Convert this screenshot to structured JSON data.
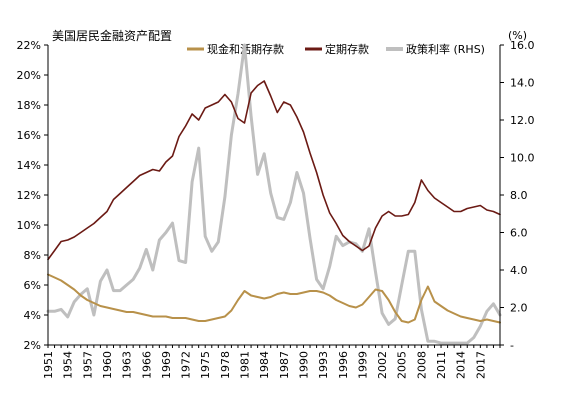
{
  "chart_data": {
    "type": "line",
    "title": "美国居民金融资产配置",
    "right_unit": "(%)",
    "colors": {
      "cash": "#B8914A",
      "time": "#6B1A14",
      "rate": "#BFBFBF",
      "grid": "#E0E0E0",
      "axis": "#000000"
    },
    "x_ticks": [
      "1951",
      "1954",
      "1957",
      "1960",
      "1963",
      "1966",
      "1969",
      "1972",
      "1975",
      "1978",
      "1981",
      "1984",
      "1987",
      "1990",
      "1993",
      "1996",
      "1999",
      "2002",
      "2005",
      "2008",
      "2011",
      "2014",
      "2017"
    ],
    "xlim": [
      1951,
      2020
    ],
    "y_left": {
      "ylim": [
        2,
        22
      ],
      "ticks": [
        2,
        4,
        6,
        8,
        10,
        12,
        14,
        16,
        18,
        20,
        22
      ],
      "tick_labels": [
        "2%",
        "4%",
        "6%",
        "8%",
        "10%",
        "12%",
        "14%",
        "16%",
        "18%",
        "20%",
        "22%"
      ]
    },
    "y_right": {
      "ylim": [
        0,
        16
      ],
      "ticks": [
        0,
        2,
        4,
        6,
        8,
        10,
        12,
        14,
        16
      ],
      "tick_labels": [
        "-",
        "2.0",
        "4.0",
        "6.0",
        "8.0",
        "10.0",
        "12.0",
        "14.0",
        "16.0"
      ]
    },
    "legend_position": "top",
    "series": [
      {
        "key": "cash",
        "name": "现金和活期存款",
        "axis": "left",
        "points": [
          [
            1951,
            6.7
          ],
          [
            1952,
            6.5
          ],
          [
            1953,
            6.3
          ],
          [
            1954,
            6.0
          ],
          [
            1955,
            5.7
          ],
          [
            1956,
            5.3
          ],
          [
            1957,
            5.0
          ],
          [
            1958,
            4.8
          ],
          [
            1959,
            4.6
          ],
          [
            1960,
            4.5
          ],
          [
            1961,
            4.4
          ],
          [
            1962,
            4.3
          ],
          [
            1963,
            4.2
          ],
          [
            1964,
            4.2
          ],
          [
            1965,
            4.1
          ],
          [
            1966,
            4.0
          ],
          [
            1967,
            3.9
          ],
          [
            1968,
            3.9
          ],
          [
            1969,
            3.9
          ],
          [
            1970,
            3.8
          ],
          [
            1971,
            3.8
          ],
          [
            1972,
            3.8
          ],
          [
            1973,
            3.7
          ],
          [
            1974,
            3.6
          ],
          [
            1975,
            3.6
          ],
          [
            1976,
            3.7
          ],
          [
            1977,
            3.8
          ],
          [
            1978,
            3.9
          ],
          [
            1979,
            4.3
          ],
          [
            1980,
            5.0
          ],
          [
            1981,
            5.6
          ],
          [
            1982,
            5.3
          ],
          [
            1983,
            5.2
          ],
          [
            1984,
            5.1
          ],
          [
            1985,
            5.2
          ],
          [
            1986,
            5.4
          ],
          [
            1987,
            5.5
          ],
          [
            1988,
            5.4
          ],
          [
            1989,
            5.4
          ],
          [
            1990,
            5.5
          ],
          [
            1991,
            5.6
          ],
          [
            1992,
            5.6
          ],
          [
            1993,
            5.5
          ],
          [
            1994,
            5.3
          ],
          [
            1995,
            5.0
          ],
          [
            1996,
            4.8
          ],
          [
            1997,
            4.6
          ],
          [
            1998,
            4.5
          ],
          [
            1999,
            4.7
          ],
          [
            2000,
            5.2
          ],
          [
            2001,
            5.7
          ],
          [
            2002,
            5.6
          ],
          [
            2003,
            5.0
          ],
          [
            2004,
            4.2
          ],
          [
            2005,
            3.6
          ],
          [
            2006,
            3.5
          ],
          [
            2007,
            3.7
          ],
          [
            2008,
            5.0
          ],
          [
            2009,
            5.9
          ],
          [
            2010,
            4.9
          ],
          [
            2011,
            4.6
          ],
          [
            2012,
            4.3
          ],
          [
            2013,
            4.1
          ],
          [
            2014,
            3.9
          ],
          [
            2015,
            3.8
          ],
          [
            2016,
            3.7
          ],
          [
            2017,
            3.6
          ],
          [
            2018,
            3.7
          ],
          [
            2019,
            3.6
          ],
          [
            2020,
            3.5
          ]
        ]
      },
      {
        "key": "time",
        "name": "定期存款",
        "axis": "left",
        "points": [
          [
            1951,
            7.7
          ],
          [
            1952,
            8.3
          ],
          [
            1953,
            8.9
          ],
          [
            1954,
            9.0
          ],
          [
            1955,
            9.2
          ],
          [
            1956,
            9.5
          ],
          [
            1957,
            9.8
          ],
          [
            1958,
            10.1
          ],
          [
            1959,
            10.5
          ],
          [
            1960,
            10.9
          ],
          [
            1961,
            11.7
          ],
          [
            1962,
            12.1
          ],
          [
            1963,
            12.5
          ],
          [
            1964,
            12.9
          ],
          [
            1965,
            13.3
          ],
          [
            1966,
            13.5
          ],
          [
            1967,
            13.7
          ],
          [
            1968,
            13.6
          ],
          [
            1969,
            14.2
          ],
          [
            1970,
            14.6
          ],
          [
            1971,
            15.9
          ],
          [
            1972,
            16.6
          ],
          [
            1973,
            17.4
          ],
          [
            1974,
            17.0
          ],
          [
            1975,
            17.8
          ],
          [
            1976,
            18.0
          ],
          [
            1977,
            18.2
          ],
          [
            1978,
            18.7
          ],
          [
            1979,
            18.2
          ],
          [
            1980,
            17.1
          ],
          [
            1981,
            16.8
          ],
          [
            1982,
            18.8
          ],
          [
            1983,
            19.3
          ],
          [
            1984,
            19.6
          ],
          [
            1985,
            18.6
          ],
          [
            1986,
            17.5
          ],
          [
            1987,
            18.2
          ],
          [
            1988,
            18.0
          ],
          [
            1989,
            17.2
          ],
          [
            1990,
            16.2
          ],
          [
            1991,
            14.8
          ],
          [
            1992,
            13.5
          ],
          [
            1993,
            12.0
          ],
          [
            1994,
            10.8
          ],
          [
            1995,
            10.1
          ],
          [
            1996,
            9.3
          ],
          [
            1997,
            8.9
          ],
          [
            1998,
            8.6
          ],
          [
            1999,
            8.3
          ],
          [
            2000,
            8.6
          ],
          [
            2001,
            9.8
          ],
          [
            2002,
            10.6
          ],
          [
            2003,
            10.9
          ],
          [
            2004,
            10.6
          ],
          [
            2005,
            10.6
          ],
          [
            2006,
            10.7
          ],
          [
            2007,
            11.5
          ],
          [
            2008,
            13.0
          ],
          [
            2009,
            12.3
          ],
          [
            2010,
            11.8
          ],
          [
            2011,
            11.5
          ],
          [
            2012,
            11.2
          ],
          [
            2013,
            10.9
          ],
          [
            2014,
            10.9
          ],
          [
            2015,
            11.1
          ],
          [
            2016,
            11.2
          ],
          [
            2017,
            11.3
          ],
          [
            2018,
            11.0
          ],
          [
            2019,
            10.9
          ],
          [
            2020,
            10.7
          ]
        ]
      },
      {
        "key": "rate",
        "name": "政策利率 (RHS)",
        "axis": "right",
        "points": [
          [
            1951,
            1.8
          ],
          [
            1952,
            1.8
          ],
          [
            1953,
            1.9
          ],
          [
            1954,
            1.5
          ],
          [
            1955,
            2.3
          ],
          [
            1956,
            2.7
          ],
          [
            1957,
            3.0
          ],
          [
            1958,
            1.6
          ],
          [
            1959,
            3.4
          ],
          [
            1960,
            4.0
          ],
          [
            1961,
            2.9
          ],
          [
            1962,
            2.9
          ],
          [
            1963,
            3.2
          ],
          [
            1964,
            3.5
          ],
          [
            1965,
            4.1
          ],
          [
            1966,
            5.1
          ],
          [
            1967,
            4.0
          ],
          [
            1968,
            5.6
          ],
          [
            1969,
            6.0
          ],
          [
            1970,
            6.5
          ],
          [
            1971,
            4.5
          ],
          [
            1972,
            4.4
          ],
          [
            1973,
            8.7
          ],
          [
            1974,
            10.5
          ],
          [
            1975,
            5.8
          ],
          [
            1976,
            5.0
          ],
          [
            1977,
            5.5
          ],
          [
            1978,
            7.9
          ],
          [
            1979,
            11.2
          ],
          [
            1980,
            13.4
          ],
          [
            1981,
            16.0
          ],
          [
            1982,
            12.2
          ],
          [
            1983,
            9.1
          ],
          [
            1984,
            10.2
          ],
          [
            1985,
            8.1
          ],
          [
            1986,
            6.8
          ],
          [
            1987,
            6.7
          ],
          [
            1988,
            7.6
          ],
          [
            1989,
            9.2
          ],
          [
            1990,
            8.1
          ],
          [
            1991,
            5.7
          ],
          [
            1992,
            3.5
          ],
          [
            1993,
            3.0
          ],
          [
            1994,
            4.2
          ],
          [
            1995,
            5.8
          ],
          [
            1996,
            5.3
          ],
          [
            1997,
            5.5
          ],
          [
            1998,
            5.4
          ],
          [
            1999,
            5.0
          ],
          [
            2000,
            6.2
          ],
          [
            2001,
            3.9
          ],
          [
            2002,
            1.7
          ],
          [
            2003,
            1.1
          ],
          [
            2004,
            1.4
          ],
          [
            2005,
            3.2
          ],
          [
            2006,
            5.0
          ],
          [
            2007,
            5.0
          ],
          [
            2008,
            1.9
          ],
          [
            2009,
            0.2
          ],
          [
            2010,
            0.2
          ],
          [
            2011,
            0.1
          ],
          [
            2012,
            0.1
          ],
          [
            2013,
            0.1
          ],
          [
            2014,
            0.1
          ],
          [
            2015,
            0.1
          ],
          [
            2016,
            0.4
          ],
          [
            2017,
            1.0
          ],
          [
            2018,
            1.8
          ],
          [
            2019,
            2.2
          ],
          [
            2020,
            1.6
          ]
        ]
      }
    ]
  }
}
